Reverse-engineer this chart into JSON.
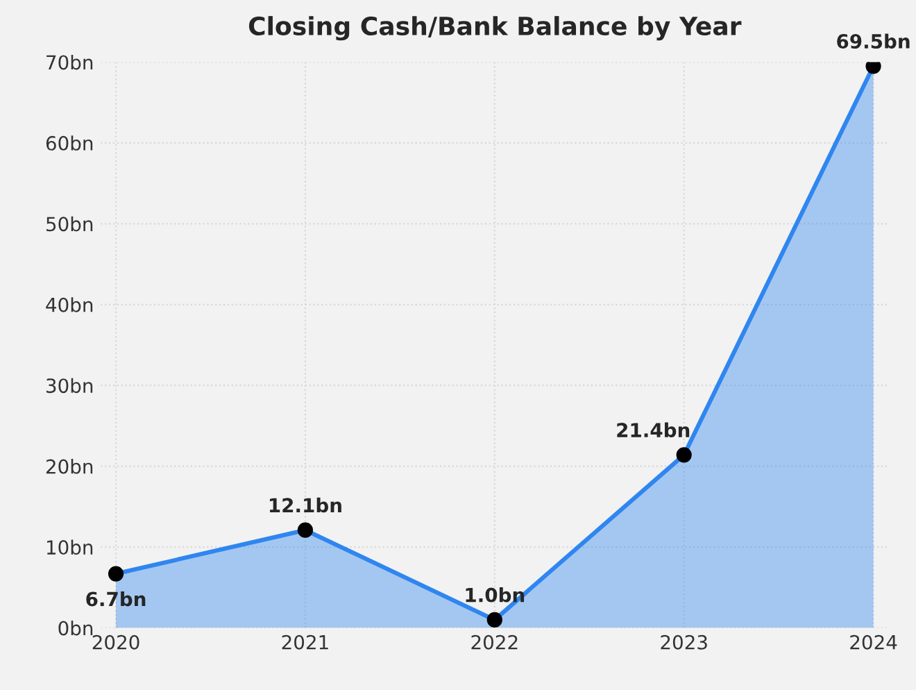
{
  "chart_data": {
    "type": "area",
    "title": "Closing Cash/Bank Balance by Year",
    "categories": [
      "2020",
      "2021",
      "2022",
      "2023",
      "2024"
    ],
    "series": [
      {
        "color": "#2f86f0",
        "values": [
          6.7,
          12.1,
          1.0,
          21.4,
          69.5
        ],
        "value_labels": [
          "6.7bn",
          "12.1bn",
          "1.0bn",
          "21.4bn",
          "69.5bn"
        ]
      }
    ],
    "ylim": [
      0,
      70
    ],
    "yticks": [
      {
        "value": 0,
        "label": "0bn"
      },
      {
        "value": 10,
        "label": "10bn"
      },
      {
        "value": 20,
        "label": "20bn"
      },
      {
        "value": 30,
        "label": "30bn"
      },
      {
        "value": 40,
        "label": "40bn"
      },
      {
        "value": 50,
        "label": "50bn"
      },
      {
        "value": 60,
        "label": "60bn"
      },
      {
        "value": 70,
        "label": "70bn"
      }
    ],
    "grid": true,
    "marker": "circle",
    "line_style": "solid"
  }
}
